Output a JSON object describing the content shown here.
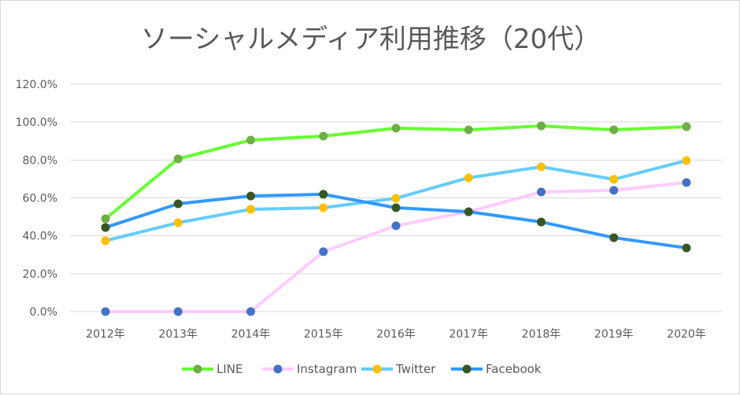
{
  "chart_data": {
    "type": "line",
    "title": "ソーシャルメディア利用推移（20代）",
    "categories": [
      "2012年",
      "2013年",
      "2014年",
      "2015年",
      "2016年",
      "2017年",
      "2018年",
      "2019年",
      "2020年"
    ],
    "ylim": [
      0,
      120
    ],
    "yticks": [
      "0.0%",
      "20.0%",
      "40.0%",
      "60.0%",
      "80.0%",
      "100.0%",
      "120.0%"
    ],
    "grid": true,
    "legend_position": "bottom",
    "series": [
      {
        "name": "LINE",
        "values": [
          49.0,
          80.6,
          90.5,
          92.6,
          96.8,
          95.9,
          98.0,
          95.9,
          97.6
        ],
        "line_color": "#66ff33",
        "marker_color": "#70ad47"
      },
      {
        "name": "Instagram",
        "values": [
          0,
          0,
          0,
          31.6,
          45.3,
          52.7,
          63.1,
          64.0,
          68.1
        ],
        "line_color": "#ffccff",
        "marker_color": "#4472c4"
      },
      {
        "name": "Twitter",
        "values": [
          37.4,
          46.9,
          54.0,
          54.8,
          59.8,
          70.6,
          76.4,
          69.8,
          79.7
        ],
        "line_color": "#66ccff",
        "marker_color": "#ffc000"
      },
      {
        "name": "Facebook",
        "values": [
          44.4,
          56.9,
          61.0,
          61.9,
          54.8,
          52.7,
          47.3,
          39.0,
          33.6
        ],
        "line_color": "#3399ff",
        "marker_color": "#375623"
      }
    ]
  }
}
